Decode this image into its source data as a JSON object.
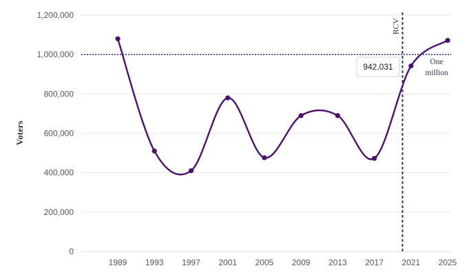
{
  "chart_data": {
    "type": "line",
    "title": "",
    "xlabel": "",
    "ylabel": "Voters",
    "x": [
      1989,
      1993,
      1997,
      2001,
      2005,
      2009,
      2013,
      2017,
      2021,
      2025
    ],
    "series": [
      {
        "values": [
          1080000,
          510000,
          410000,
          780000,
          476000,
          690000,
          690000,
          473000,
          942031,
          1072000
        ]
      }
    ],
    "xticks": [
      "1989",
      "1993",
      "1997",
      "2001",
      "2005",
      "2009",
      "2013",
      "2017",
      "2021",
      "2025"
    ],
    "yticks": [
      "0",
      "200,000",
      "400,000",
      "600,000",
      "800,000",
      "1,000,000",
      "1,200,000"
    ],
    "ylim": [
      0,
      1200000
    ],
    "grid": "horizontal",
    "reference_line": {
      "value": 1000000,
      "label_line1": "One",
      "label_line2": "million"
    },
    "event_line": {
      "x": 2020,
      "label": "RCV"
    },
    "callout": {
      "x": 2021,
      "value": 942031,
      "text": "942,031"
    },
    "colors": {
      "line": "#4b0f6e",
      "reference": "#2b3a67",
      "grid": "#e9e9ee"
    }
  }
}
